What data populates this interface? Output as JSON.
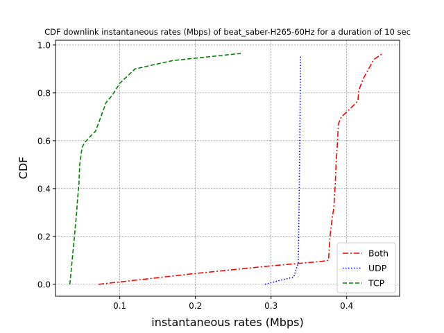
{
  "chart_data": {
    "type": "line",
    "title": "CDF downlink instantaneous rates (Mbps) of beat_saber-H265-60Hz for a duration of 10 sec",
    "xlabel": "instantaneous rates (Mbps)",
    "ylabel": "CDF",
    "xlim": [
      0.015,
      0.47
    ],
    "ylim": [
      -0.05,
      1.02
    ],
    "xticks": [
      0.1,
      0.2,
      0.3,
      0.4
    ],
    "xtick_labels": [
      "0.1",
      "0.2",
      "0.3",
      "0.4"
    ],
    "yticks": [
      0.0,
      0.2,
      0.4,
      0.6,
      0.8,
      1.0
    ],
    "ytick_labels": [
      "0.0",
      "0.2",
      "0.4",
      "0.6",
      "0.8",
      "1.0"
    ],
    "grid": true,
    "legend_position": "lower-right",
    "series": [
      {
        "name": "Both",
        "color": "#ff0000",
        "dash": "dashdot",
        "points": [
          [
            0.072,
            0.0
          ],
          [
            0.2,
            0.045
          ],
          [
            0.3,
            0.077
          ],
          [
            0.365,
            0.095
          ],
          [
            0.376,
            0.1
          ],
          [
            0.378,
            0.2
          ],
          [
            0.381,
            0.28
          ],
          [
            0.383,
            0.32
          ],
          [
            0.385,
            0.42
          ],
          [
            0.386,
            0.5
          ],
          [
            0.388,
            0.6
          ],
          [
            0.389,
            0.67
          ],
          [
            0.393,
            0.7
          ],
          [
            0.4,
            0.72
          ],
          [
            0.413,
            0.76
          ],
          [
            0.415,
            0.77
          ],
          [
            0.416,
            0.81
          ],
          [
            0.422,
            0.86
          ],
          [
            0.436,
            0.94
          ],
          [
            0.448,
            0.965
          ]
        ]
      },
      {
        "name": "UDP",
        "color": "#0000ff",
        "dash": "dotted",
        "points": [
          [
            0.292,
            0.0
          ],
          [
            0.31,
            0.015
          ],
          [
            0.33,
            0.03
          ],
          [
            0.336,
            0.09
          ],
          [
            0.337,
            0.3
          ],
          [
            0.338,
            0.6
          ],
          [
            0.339,
            0.955
          ]
        ]
      },
      {
        "name": "TCP",
        "color": "#008000",
        "dash": "dashed",
        "points": [
          [
            0.034,
            0.0
          ],
          [
            0.04,
            0.2
          ],
          [
            0.043,
            0.3
          ],
          [
            0.044,
            0.35
          ],
          [
            0.046,
            0.42
          ],
          [
            0.047,
            0.5
          ],
          [
            0.05,
            0.57
          ],
          [
            0.053,
            0.59
          ],
          [
            0.06,
            0.615
          ],
          [
            0.068,
            0.64
          ],
          [
            0.075,
            0.7
          ],
          [
            0.082,
            0.76
          ],
          [
            0.09,
            0.79
          ],
          [
            0.1,
            0.84
          ],
          [
            0.12,
            0.9
          ],
          [
            0.17,
            0.935
          ],
          [
            0.26,
            0.965
          ]
        ]
      }
    ]
  }
}
